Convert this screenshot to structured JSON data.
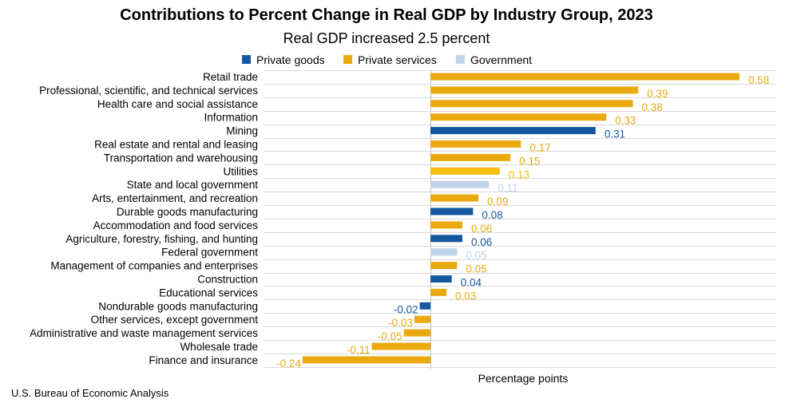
{
  "source": "U.S. Bureau of Economic Analysis",
  "colors": {
    "private_goods": "#1558a0",
    "private_services": "#eaa90e",
    "government": "#c0d4ec",
    "utilities": "#f5be0b",
    "grid": "#d9d9d9",
    "axis": "#bfbfbf"
  },
  "chart_data": {
    "type": "bar",
    "orientation": "horizontal",
    "title": "Contributions to Percent Change in Real GDP by Industry Group, 2023",
    "subtitle": "Real GDP increased 2.5 percent",
    "xlabel": "Percentage points",
    "ylabel": "",
    "xlim": [
      -0.24,
      0.58
    ],
    "grid": true,
    "legend_position": "top",
    "legend": [
      {
        "label": "Private goods",
        "color": "#1558a0"
      },
      {
        "label": "Private services",
        "color": "#eaa90e"
      },
      {
        "label": "Government",
        "color": "#c0d4ec"
      }
    ],
    "categories": [
      "Retail trade",
      "Professional, scientific, and technical services",
      "Health care and social assistance",
      "Information",
      "Mining",
      "Real estate and rental and leasing",
      "Transportation and warehousing",
      "Utilities",
      "State and local government",
      "Arts, entertainment, and recreation",
      "Durable goods manufacturing",
      "Accommodation and food services",
      "Agriculture, forestry, fishing, and hunting",
      "Federal government",
      "Management of companies and enterprises",
      "Construction",
      "Educational services",
      "Nondurable goods manufacturing",
      "Other services, except government",
      "Administrative and waste management services",
      "Wholesale trade",
      "Finance and insurance"
    ],
    "values": [
      0.58,
      0.39,
      0.38,
      0.33,
      0.31,
      0.17,
      0.15,
      0.13,
      0.11,
      0.09,
      0.08,
      0.06,
      0.06,
      0.05,
      0.05,
      0.04,
      0.03,
      -0.02,
      -0.03,
      -0.05,
      -0.11,
      -0.24
    ],
    "value_labels": [
      "0.58",
      "0.39",
      "0.38",
      "0.33",
      "0.31",
      "0.17",
      "0.15",
      "0.13",
      "0.11",
      "0.09",
      "0.08",
      "0.06",
      "0.06",
      "0.05",
      "0.05",
      "0.04",
      "0.03",
      "-0.02",
      "-0.03",
      "-0.05",
      "-0.11",
      "-0.24"
    ],
    "groups": [
      "services",
      "services",
      "services",
      "services",
      "goods",
      "services",
      "services",
      "utilities",
      "government",
      "services",
      "goods",
      "services",
      "goods",
      "government",
      "services",
      "goods",
      "services",
      "goods",
      "services",
      "services",
      "services",
      "services"
    ]
  }
}
